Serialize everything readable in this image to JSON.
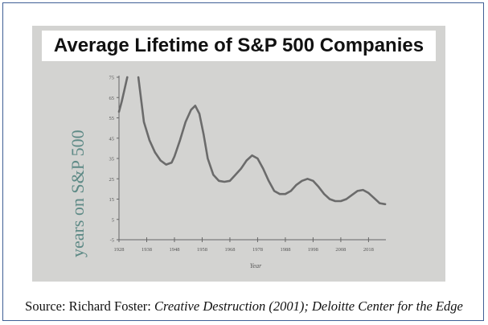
{
  "chart_data": {
    "type": "line",
    "title": "Average Lifetime of S&P 500 Companies",
    "xlabel": "Year",
    "ylabel": "years on S&P 500",
    "xlim": [
      1928,
      2026
    ],
    "ylim": [
      -5,
      75
    ],
    "x_ticks": [
      "1928",
      "1938",
      "1948",
      "1958",
      "1968",
      "1978",
      "1988",
      "1998",
      "2008",
      "2018"
    ],
    "y_ticks": [
      "75",
      "65",
      "55",
      "45",
      "35",
      "25",
      "15",
      "5",
      "-5"
    ],
    "grid": false,
    "segments": [
      {
        "x": [
          1928,
          1929,
          1930,
          1931
        ],
        "y": [
          58,
          63,
          69,
          75
        ]
      },
      {
        "x": [
          1935,
          1937,
          1939,
          1941,
          1943,
          1945,
          1947,
          1948,
          1950,
          1952,
          1954,
          1955.5,
          1957,
          1958.5,
          1960,
          1962,
          1964,
          1966,
          1968,
          1970,
          1972,
          1974,
          1976,
          1978,
          1980,
          1982,
          1984,
          1986,
          1988,
          1990,
          1992,
          1994,
          1996,
          1998,
          2000,
          2002,
          2004,
          2006,
          2008,
          2010,
          2012,
          2014,
          2016,
          2018,
          2020,
          2022,
          2024
        ],
        "y": [
          75,
          53,
          44,
          38,
          34,
          32,
          33,
          36,
          44,
          53,
          59,
          61,
          57,
          47,
          35,
          27,
          24,
          23.5,
          24,
          27,
          30,
          34,
          36.5,
          35,
          30,
          24,
          19,
          17.5,
          17.5,
          19,
          22,
          24,
          25,
          24,
          21,
          17.5,
          15,
          14,
          14,
          15,
          17,
          19,
          19.5,
          18,
          15.5,
          13,
          12.5
        ]
      }
    ]
  },
  "source": {
    "prefix": "Source: Richard Foster: ",
    "italic": "Creative Destruction (2001); Deloitte Center for the Edge"
  }
}
